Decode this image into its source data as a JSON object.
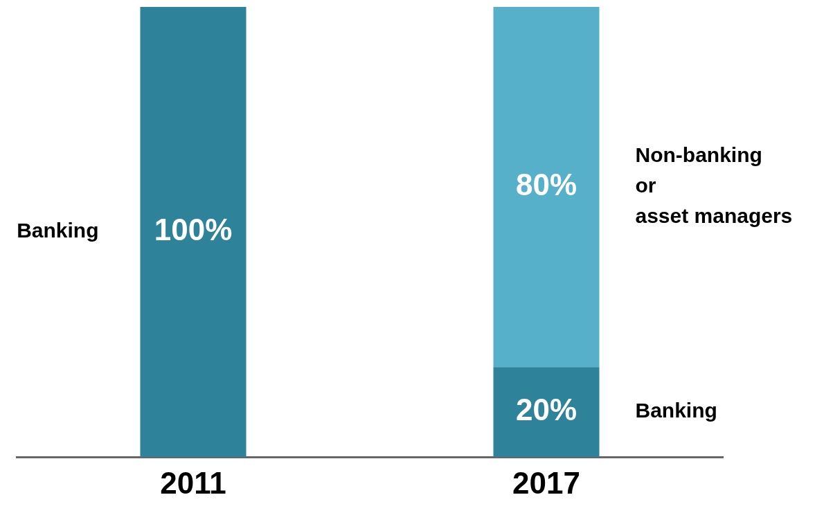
{
  "chart_data": {
    "type": "bar",
    "stacked": true,
    "categories": [
      "2011",
      "2017"
    ],
    "series": [
      {
        "name": "Banking",
        "color": "#2e8299",
        "values": [
          100,
          20
        ],
        "value_labels": [
          "100%",
          "20%"
        ]
      },
      {
        "name": "Non-banking\nor\nasset managers",
        "color": "#57b0ca",
        "values": [
          null,
          80
        ],
        "value_labels": [
          null,
          "80%"
        ]
      }
    ],
    "legend": false,
    "grid": false,
    "tick_labels": "x"
  }
}
